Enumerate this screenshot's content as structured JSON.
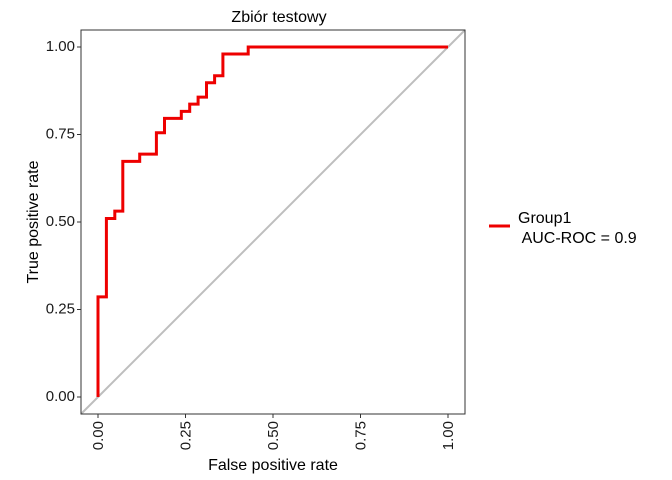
{
  "chart_data": {
    "type": "line",
    "title": "Zbiór testowy",
    "xlabel": "False positive rate",
    "ylabel": "True positive rate",
    "xlim": [
      0,
      1
    ],
    "ylim": [
      0,
      1
    ],
    "x_ticks": [
      "0.00",
      "0.25",
      "0.50",
      "0.75",
      "1.00"
    ],
    "y_ticks": [
      "0.00",
      "0.25",
      "0.50",
      "0.75",
      "1.00"
    ],
    "x_tick_values": [
      0,
      0.25,
      0.5,
      0.75,
      1
    ],
    "y_tick_values": [
      0,
      0.25,
      0.5,
      0.75,
      1
    ],
    "grid": false,
    "legend_position": "right",
    "legend": {
      "line1": "Group1",
      "line2": " AUC-ROC = 0.9"
    },
    "series": [
      {
        "name": "Group1",
        "color": "#ee0000",
        "x": [
          0,
          0,
          0.006,
          0.006,
          0.024,
          0.024,
          0.048,
          0.048,
          0.071,
          0.071,
          0.119,
          0.119,
          0.167,
          0.167,
          0.19,
          0.19,
          0.238,
          0.238,
          0.262,
          0.262,
          0.286,
          0.286,
          0.31,
          0.31,
          0.333,
          0.333,
          0.357,
          0.357,
          0.429,
          0.429,
          1.0
        ],
        "y": [
          0,
          0.286,
          0.286,
          0.286,
          0.286,
          0.51,
          0.51,
          0.531,
          0.531,
          0.673,
          0.673,
          0.694,
          0.694,
          0.755,
          0.755,
          0.796,
          0.796,
          0.816,
          0.816,
          0.837,
          0.837,
          0.857,
          0.857,
          0.898,
          0.898,
          0.918,
          0.918,
          0.98,
          0.98,
          1.0,
          1.0
        ]
      }
    ],
    "reference_line": {
      "color": "#bebebe",
      "x": [
        0,
        1
      ],
      "y": [
        0,
        1
      ]
    }
  }
}
